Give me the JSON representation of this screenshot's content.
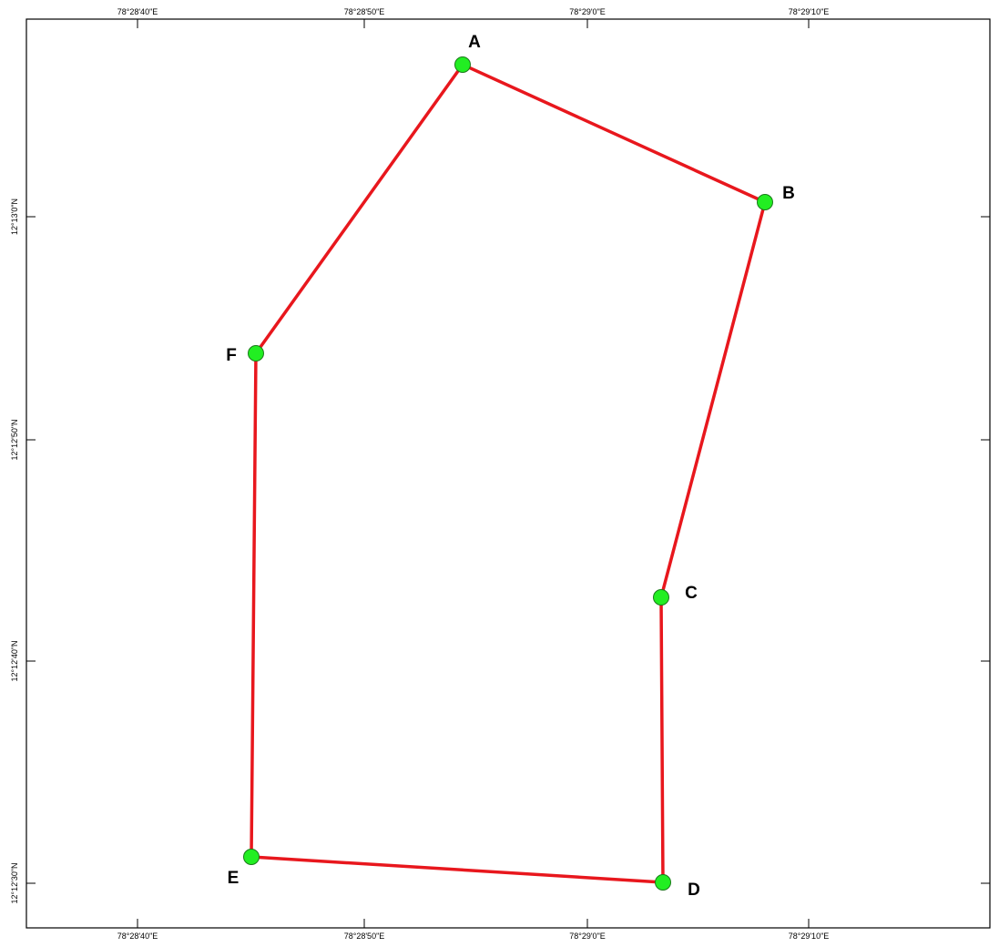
{
  "map": {
    "grid_labels": {
      "top": [
        "78°28'40\"E",
        "78°28'50\"E",
        "78°29'0\"E",
        "78°29'10\"E"
      ],
      "bottom": [
        "78°28'40\"E",
        "78°28'50\"E",
        "78°29'0\"E",
        "78°29'10\"E"
      ],
      "left": [
        "12°13'0\"N",
        "12°12'50\"N",
        "12°12'40\"N",
        "12°12'30\"N"
      ]
    },
    "boundary_color": "#e8171d",
    "point_color": "#22ee22",
    "points": [
      {
        "id": "A",
        "label": "A"
      },
      {
        "id": "B",
        "label": "B"
      },
      {
        "id": "C",
        "label": "C"
      },
      {
        "id": "D",
        "label": "D"
      },
      {
        "id": "E",
        "label": "E"
      },
      {
        "id": "F",
        "label": "F"
      }
    ]
  }
}
